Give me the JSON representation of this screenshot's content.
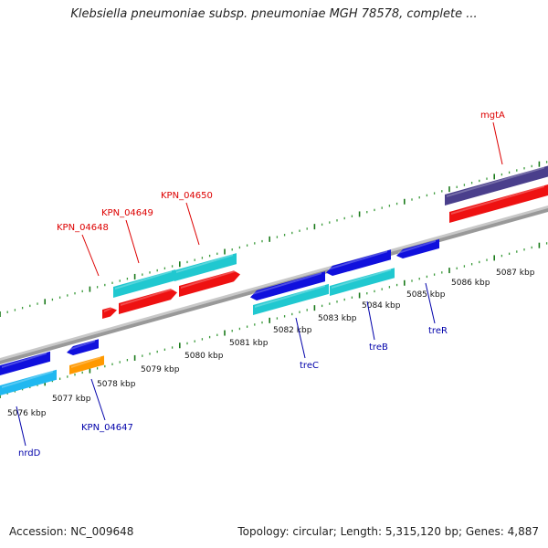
{
  "title": "Klebsiella pneumoniae subsp. pneumoniae MGH 78578, complete ...",
  "footer": {
    "accession": "Accession: NC_009648",
    "summary": "Topology: circular; Length: 5,315,120 bp; Genes: 4,887"
  },
  "colors": {
    "backbone": "#8c8c8c",
    "tick_major": "#1a7a1a",
    "tick_minor": "#3a9a3a",
    "label_top": "#dd0000",
    "label_bottom": "#0000aa",
    "blue_gene": "#1010dd",
    "cyan_gene": "#20c8d0",
    "red_gene": "#ee1111",
    "orange_gene": "#ff9900",
    "purple_gene": "#4a3f8c",
    "sky_gene": "#20b8f0"
  },
  "ticks": [
    {
      "label": "5076 kbp"
    },
    {
      "label": "5077 kbp"
    },
    {
      "label": "5078 kbp"
    },
    {
      "label": "5079 kbp"
    },
    {
      "label": "5080 kbp"
    },
    {
      "label": "5081 kbp"
    },
    {
      "label": "5082 kbp"
    },
    {
      "label": "5083 kbp"
    },
    {
      "label": "5084 kbp"
    },
    {
      "label": "5085 kbp"
    },
    {
      "label": "5086 kbp"
    },
    {
      "label": "5087 kbp"
    }
  ],
  "genes": [
    {
      "name": "KPN_04648",
      "strand": "forward"
    },
    {
      "name": "KPN_04649",
      "strand": "forward"
    },
    {
      "name": "KPN_04650",
      "strand": "forward"
    },
    {
      "name": "mgtA",
      "strand": "forward"
    },
    {
      "name": "KPN_04647",
      "strand": "reverse"
    },
    {
      "name": "nrdD",
      "strand": "reverse"
    },
    {
      "name": "treC",
      "strand": "reverse"
    },
    {
      "name": "treB",
      "strand": "reverse"
    },
    {
      "name": "treR",
      "strand": "reverse"
    }
  ]
}
